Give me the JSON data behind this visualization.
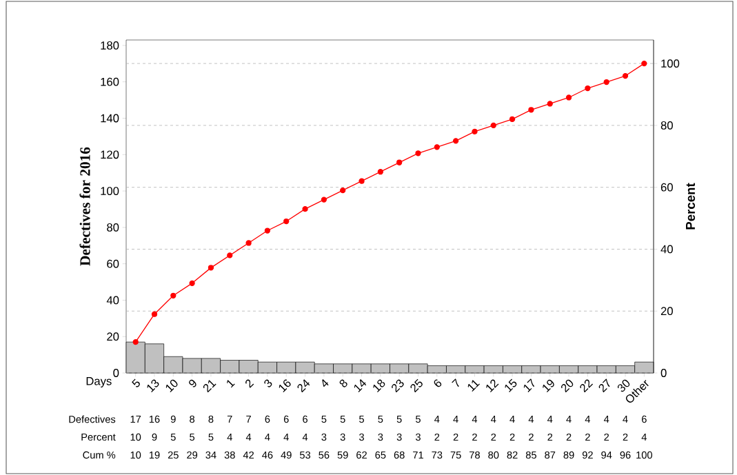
{
  "chart_data": {
    "type": "bar",
    "xlabel": "Days",
    "ylabel": "Defectives for 2016",
    "y2label": "Percent",
    "categories": [
      "5",
      "13",
      "10",
      "9",
      "21",
      "1",
      "2",
      "3",
      "16",
      "24",
      "4",
      "8",
      "14",
      "18",
      "23",
      "25",
      "6",
      "7",
      "11",
      "12",
      "15",
      "17",
      "19",
      "20",
      "22",
      "27",
      "30",
      "Other"
    ],
    "series": [
      {
        "color": "#c0c0c0",
        "values": [
          17,
          16,
          9,
          8,
          8,
          7,
          7,
          6,
          6,
          6,
          5,
          5,
          5,
          5,
          5,
          5,
          4,
          4,
          4,
          4,
          4,
          4,
          4,
          4,
          4,
          4,
          4,
          6
        ]
      },
      {
        "type": "line",
        "axis": "y2",
        "color": "#ff0000",
        "marker": "circle",
        "line_style": "solid",
        "values": [
          10,
          19,
          25,
          29,
          34,
          38,
          42,
          46,
          49,
          53,
          56,
          59,
          62,
          65,
          68,
          71,
          73,
          75,
          78,
          80,
          82,
          85,
          87,
          89,
          92,
          94,
          96,
          100
        ]
      }
    ],
    "ylim": [
      0,
      183
    ],
    "yticks": [
      0,
      20,
      40,
      60,
      80,
      100,
      120,
      140,
      160,
      180
    ],
    "y2lim": [
      0,
      107.6
    ],
    "y2ticks": [
      0,
      20,
      40,
      60,
      80,
      100
    ],
    "annotations": [
      "Defectives",
      "Percent",
      "Cum %",
      "10",
      "9",
      "5",
      "5",
      "5",
      "4",
      "4",
      "4",
      "4",
      "4",
      "3",
      "3",
      "3",
      "3",
      "3",
      "3",
      "2",
      "2",
      "2",
      "2",
      "2",
      "2",
      "2",
      "2",
      "2",
      "2",
      "2",
      "4"
    ],
    "grid": "y2",
    "data_labels": true
  }
}
